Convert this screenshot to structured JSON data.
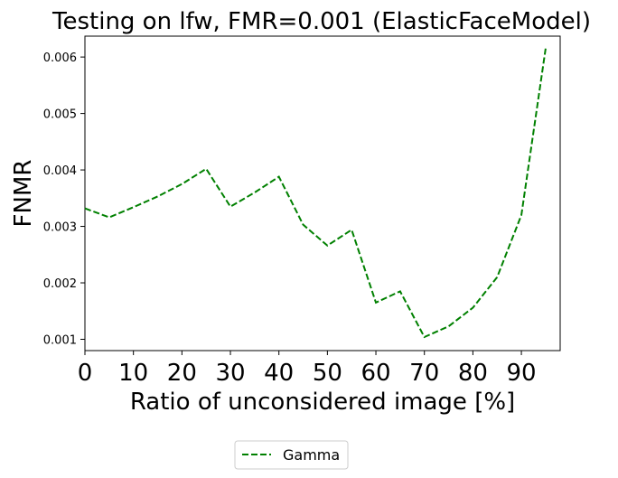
{
  "chart_data": {
    "type": "line",
    "title": "Testing on lfw, FMR=0.001 (ElasticFaceModel)",
    "xlabel": "Ratio of unconsidered image [%]",
    "ylabel": "FNMR",
    "xlim": [
      0,
      98
    ],
    "ylim": [
      0.0008,
      0.00637
    ],
    "xticks": [
      0,
      10,
      20,
      30,
      40,
      50,
      60,
      70,
      80,
      90
    ],
    "xtick_labels": [
      "0",
      "10",
      "20",
      "30",
      "40",
      "50",
      "60",
      "70",
      "80",
      "90"
    ],
    "yticks": [
      0.001,
      0.002,
      0.003,
      0.004,
      0.005,
      0.006
    ],
    "ytick_labels": [
      "0.001",
      "0.002",
      "0.003",
      "0.004",
      "0.005",
      "0.006"
    ],
    "grid": false,
    "legend_position": "bottom-center",
    "series": [
      {
        "name": "Gamma",
        "color": "#008000",
        "linestyle": "dashed",
        "x": [
          0,
          5,
          10,
          15,
          20,
          25,
          30,
          35,
          40,
          45,
          50,
          55,
          60,
          65,
          70,
          75,
          80,
          85,
          90,
          95
        ],
        "y": [
          0.00332,
          0.00316,
          0.00334,
          0.00353,
          0.00375,
          0.00402,
          0.00335,
          0.0036,
          0.00388,
          0.00303,
          0.00266,
          0.00294,
          0.00165,
          0.00185,
          0.00104,
          0.00123,
          0.00156,
          0.0021,
          0.0032,
          0.00615
        ]
      }
    ]
  }
}
